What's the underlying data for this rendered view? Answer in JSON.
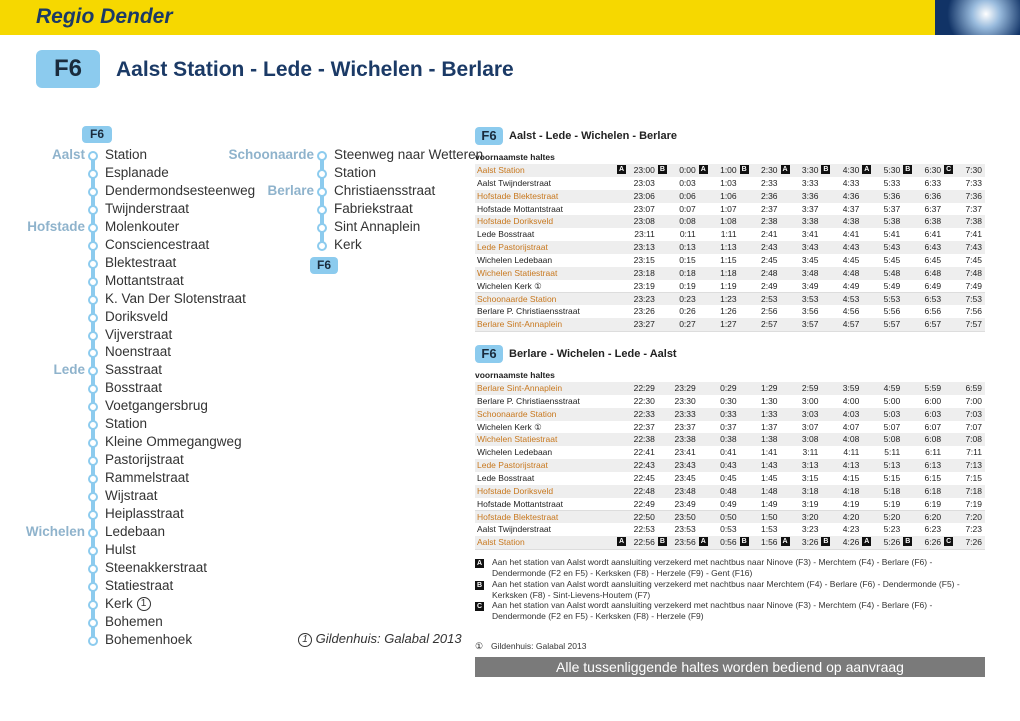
{
  "header": {
    "region": "Regio Dender",
    "line": "F6",
    "route": "Aalst Station - Lede - Wichelen - Berlare"
  },
  "network": {
    "line": "F6",
    "end_line": "F6",
    "columns": [
      {
        "stops": [
          {
            "town": "Aalst",
            "name": "Station"
          },
          {
            "name": "Esplanade"
          },
          {
            "name": "Dendermondsesteenweg"
          },
          {
            "name": "Twijnderstraat"
          },
          {
            "town": "Hofstade",
            "name": "Molenkouter"
          },
          {
            "name": "Consciencestraat"
          },
          {
            "name": "Blektestraat"
          },
          {
            "name": "Mottantstraat"
          },
          {
            "name": "K. Van Der Slotenstraat"
          },
          {
            "name": "Doriksveld"
          },
          {
            "name": "Vijverstraat"
          },
          {
            "name": "Noenstraat"
          },
          {
            "town": "Lede",
            "name": "Sasstraat"
          },
          {
            "name": "Bosstraat"
          },
          {
            "name": "Voetgangersbrug"
          },
          {
            "name": "Station"
          },
          {
            "name": "Kleine Ommegangweg"
          },
          {
            "name": "Pastorijstraat"
          },
          {
            "name": "Rammelstraat"
          },
          {
            "name": "Wijstraat"
          },
          {
            "name": "Heiplasstraat"
          },
          {
            "town": "Wichelen",
            "name": "Ledebaan"
          },
          {
            "name": "Hulst"
          },
          {
            "name": "Steenakkerstraat"
          },
          {
            "name": "Statiestraat"
          },
          {
            "name": "Kerk",
            "mark": "1"
          },
          {
            "name": "Bohemen"
          },
          {
            "name": "Bohemenhoek"
          }
        ]
      },
      {
        "stops": [
          {
            "town": "Schoonaarde",
            "name": "Steenweg naar Wetteren"
          },
          {
            "name": "Station"
          },
          {
            "town": "Berlare",
            "name": "Christiaensstraat"
          },
          {
            "name": "Fabriekstraat"
          },
          {
            "name": "Sint Annaplein"
          },
          {
            "name": "Kerk"
          }
        ]
      }
    ],
    "note": {
      "mark": "1",
      "text": "Gildenhuis: Galabal 2013"
    }
  },
  "timetables": [
    {
      "line": "F6",
      "title": "Aalst - Lede - Wichelen - Berlare",
      "subtitle": "voornaamste haltes",
      "rows": [
        {
          "stop": "Aalst Station",
          "markers": [
            "A",
            "B",
            "A",
            "B",
            "A",
            "B",
            "A",
            "B",
            "C"
          ],
          "times": [
            "23:00",
            "0:00",
            "1:00",
            "2:30",
            "3:30",
            "4:30",
            "5:30",
            "6:30",
            "7:30"
          ]
        },
        {
          "stop": "Aalst Twijnderstraat",
          "times": [
            "23:03",
            "0:03",
            "1:03",
            "2:33",
            "3:33",
            "4:33",
            "5:33",
            "6:33",
            "7:33"
          ]
        },
        {
          "stop": "Hofstade Blektestraat",
          "times": [
            "23:06",
            "0:06",
            "1:06",
            "2:36",
            "3:36",
            "4:36",
            "5:36",
            "6:36",
            "7:36"
          ]
        },
        {
          "stop": "Hofstade Mottantstraat",
          "times": [
            "23:07",
            "0:07",
            "1:07",
            "2:37",
            "3:37",
            "4:37",
            "5:37",
            "6:37",
            "7:37"
          ]
        },
        {
          "stop": "Hofstade Doriksveld",
          "times": [
            "23:08",
            "0:08",
            "1:08",
            "2:38",
            "3:38",
            "4:38",
            "5:38",
            "6:38",
            "7:38"
          ]
        },
        {
          "stop": "Lede Bosstraat",
          "times": [
            "23:11",
            "0:11",
            "1:11",
            "2:41",
            "3:41",
            "4:41",
            "5:41",
            "6:41",
            "7:41"
          ]
        },
        {
          "stop": "Lede Pastorijstraat",
          "times": [
            "23:13",
            "0:13",
            "1:13",
            "2:43",
            "3:43",
            "4:43",
            "5:43",
            "6:43",
            "7:43"
          ]
        },
        {
          "stop": "Wichelen Ledebaan",
          "times": [
            "23:15",
            "0:15",
            "1:15",
            "2:45",
            "3:45",
            "4:45",
            "5:45",
            "6:45",
            "7:45"
          ]
        },
        {
          "stop": "Wichelen Statiestraat",
          "times": [
            "23:18",
            "0:18",
            "1:18",
            "2:48",
            "3:48",
            "4:48",
            "5:48",
            "6:48",
            "7:48"
          ]
        },
        {
          "stop": "Wichelen Kerk ①",
          "times": [
            "23:19",
            "0:19",
            "1:19",
            "2:49",
            "3:49",
            "4:49",
            "5:49",
            "6:49",
            "7:49"
          ]
        },
        {
          "stop": "Schoonaarde Station",
          "times": [
            "23:23",
            "0:23",
            "1:23",
            "2:53",
            "3:53",
            "4:53",
            "5:53",
            "6:53",
            "7:53"
          ]
        },
        {
          "stop": "Berlare P. Christiaensstraat",
          "times": [
            "23:26",
            "0:26",
            "1:26",
            "2:56",
            "3:56",
            "4:56",
            "5:56",
            "6:56",
            "7:56"
          ]
        },
        {
          "stop": "Berlare Sint-Annaplein",
          "times": [
            "23:27",
            "0:27",
            "1:27",
            "2:57",
            "3:57",
            "4:57",
            "5:57",
            "6:57",
            "7:57"
          ]
        }
      ]
    },
    {
      "line": "F6",
      "title": "Berlare - Wichelen - Lede - Aalst",
      "subtitle": "voornaamste haltes",
      "rows": [
        {
          "stop": "Berlare Sint-Annaplein",
          "times": [
            "22:29",
            "23:29",
            "0:29",
            "1:29",
            "2:59",
            "3:59",
            "4:59",
            "5:59",
            "6:59"
          ]
        },
        {
          "stop": "Berlare P. Christiaensstraat",
          "times": [
            "22:30",
            "23:30",
            "0:30",
            "1:30",
            "3:00",
            "4:00",
            "5:00",
            "6:00",
            "7:00"
          ]
        },
        {
          "stop": "Schoonaarde Station",
          "times": [
            "22:33",
            "23:33",
            "0:33",
            "1:33",
            "3:03",
            "4:03",
            "5:03",
            "6:03",
            "7:03"
          ]
        },
        {
          "stop": "Wichelen Kerk ①",
          "times": [
            "22:37",
            "23:37",
            "0:37",
            "1:37",
            "3:07",
            "4:07",
            "5:07",
            "6:07",
            "7:07"
          ]
        },
        {
          "stop": "Wichelen Statiestraat",
          "times": [
            "22:38",
            "23:38",
            "0:38",
            "1:38",
            "3:08",
            "4:08",
            "5:08",
            "6:08",
            "7:08"
          ]
        },
        {
          "stop": "Wichelen Ledebaan",
          "times": [
            "22:41",
            "23:41",
            "0:41",
            "1:41",
            "3:11",
            "4:11",
            "5:11",
            "6:11",
            "7:11"
          ]
        },
        {
          "stop": "Lede Pastorijstraat",
          "times": [
            "22:43",
            "23:43",
            "0:43",
            "1:43",
            "3:13",
            "4:13",
            "5:13",
            "6:13",
            "7:13"
          ]
        },
        {
          "stop": "Lede Bosstraat",
          "times": [
            "22:45",
            "23:45",
            "0:45",
            "1:45",
            "3:15",
            "4:15",
            "5:15",
            "6:15",
            "7:15"
          ]
        },
        {
          "stop": "Hofstade Doriksveld",
          "times": [
            "22:48",
            "23:48",
            "0:48",
            "1:48",
            "3:18",
            "4:18",
            "5:18",
            "6:18",
            "7:18"
          ]
        },
        {
          "stop": "Hofstade Mottantstraat",
          "times": [
            "22:49",
            "23:49",
            "0:49",
            "1:49",
            "3:19",
            "4:19",
            "5:19",
            "6:19",
            "7:19"
          ]
        },
        {
          "stop": "Hofstade Blektestraat",
          "times": [
            "22:50",
            "23:50",
            "0:50",
            "1:50",
            "3:20",
            "4:20",
            "5:20",
            "6:20",
            "7:20"
          ]
        },
        {
          "stop": "Aalst Twijnderstraat",
          "times": [
            "22:53",
            "23:53",
            "0:53",
            "1:53",
            "3:23",
            "4:23",
            "5:23",
            "6:23",
            "7:23"
          ]
        },
        {
          "stop": "Aalst Station",
          "markers": [
            "A",
            "B",
            "A",
            "B",
            "A",
            "B",
            "A",
            "B",
            "C"
          ],
          "times": [
            "22:56",
            "23:56",
            "0:56",
            "1:56",
            "3:26",
            "4:26",
            "5:26",
            "6:26",
            "7:26"
          ]
        }
      ]
    }
  ],
  "notes": [
    {
      "mark": "A",
      "text": "Aan het station van Aalst wordt aansluiting verzekerd met nachtbus naar Ninove (F3) - Merchtem (F4) - Berlare (F6) - Dendermonde (F2 en F5) - Kerksken (F8) - Herzele (F9) - Gent (F16)"
    },
    {
      "mark": "B",
      "text": "Aan het station van Aalst wordt aansluiting verzekerd met nachtbus naar Merchtem (F4) - Berlare (F6) - Dendermonde (F5) - Kerksken (F8) - Sint-Lievens-Houtem (F7)"
    },
    {
      "mark": "C",
      "text": "Aan het station van Aalst wordt aansluiting verzekerd met nachtbus naar Ninove (F3) - Merchtem (F4) - Berlare (F6) - Dendermonde (F2 en F5) - Kerksken (F8) - Herzele (F9)"
    }
  ],
  "footnote": {
    "mark": "①",
    "text": "Gildenhuis: Galabal 2013"
  },
  "footer": "Alle tussenliggende haltes worden bediend op aanvraag"
}
